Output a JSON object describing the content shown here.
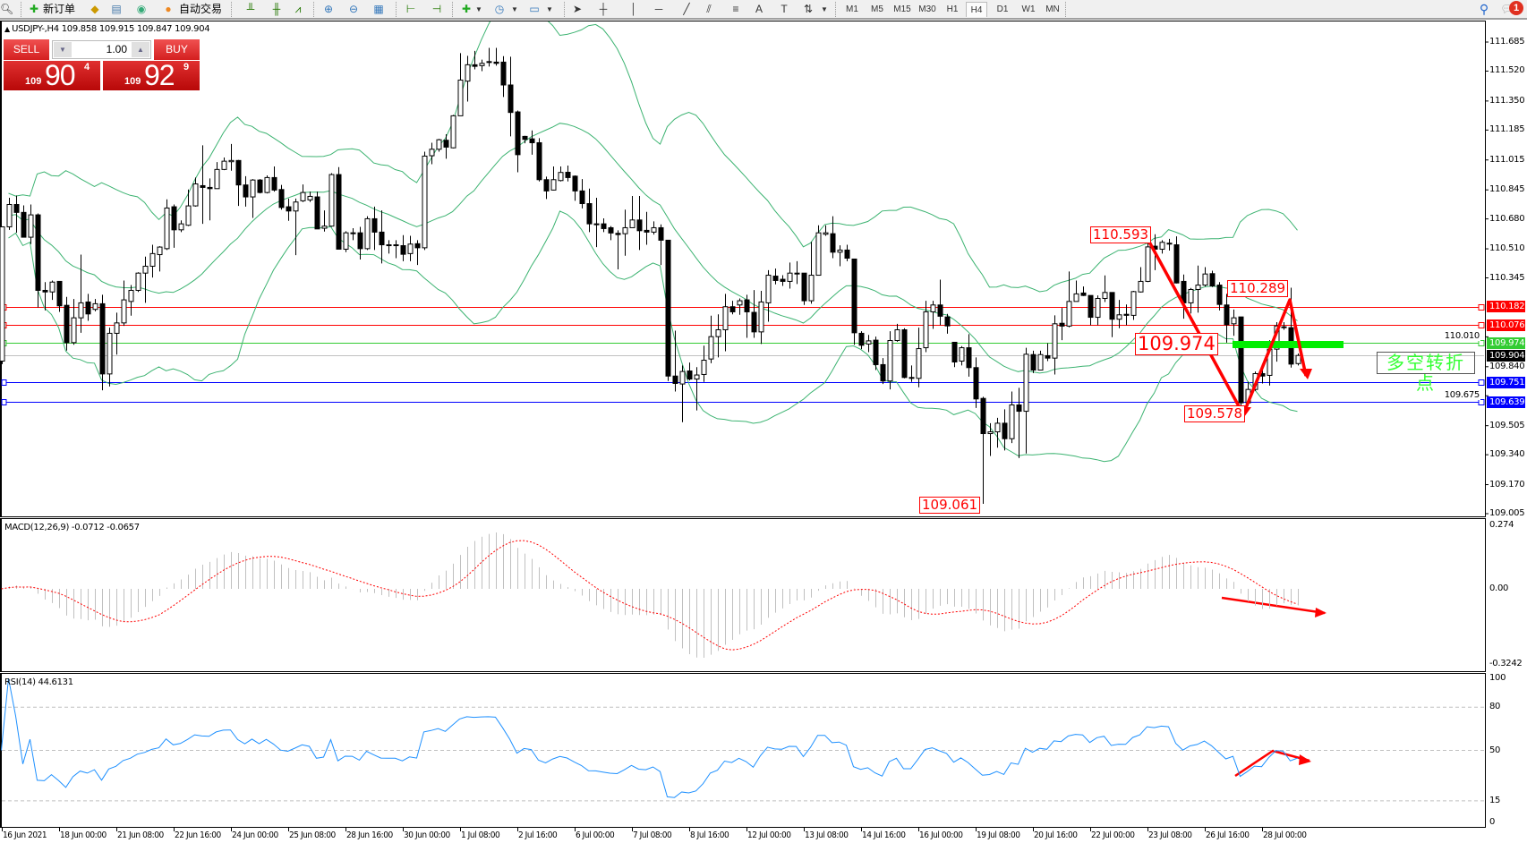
{
  "toolbar": {
    "new_order_label": "新订单",
    "auto_trading_label": "自动交易",
    "timeframes": [
      "M1",
      "M5",
      "M15",
      "M30",
      "H1",
      "H4",
      "D1",
      "W1",
      "MN"
    ],
    "active_timeframe": "H4",
    "notification_count": "1"
  },
  "chart_header": {
    "symbol_line": "USDJPY-,H4  109.858 109.915 109.847 109.904"
  },
  "trade_panel": {
    "sell_label": "SELL",
    "buy_label": "BUY",
    "lot": "1.00",
    "sell_price": {
      "small": "109",
      "big": "90",
      "pip": "4"
    },
    "buy_price": {
      "small": "109",
      "big": "92",
      "pip": "9"
    },
    "color": "#d42020"
  },
  "price_axis": {
    "ticks": [
      "111.685",
      "111.520",
      "111.350",
      "111.185",
      "111.015",
      "110.845",
      "110.680",
      "110.510",
      "110.345",
      "110.010",
      "109.840",
      "109.675",
      "109.505",
      "109.340",
      "109.170",
      "109.005"
    ],
    "range": [
      109.005,
      111.685
    ]
  },
  "levels": [
    {
      "price": "110.182",
      "color": "#ff0000"
    },
    {
      "price": "110.076",
      "color": "#ff0000"
    },
    {
      "price": "109.974",
      "color": "#33cc33"
    },
    {
      "price": "109.904",
      "color": "#000000",
      "line": "#c0c0c0"
    },
    {
      "price": "109.751",
      "color": "#0000ff"
    },
    {
      "price": "109.639",
      "color": "#0000ff"
    }
  ],
  "annotations": [
    "110.593",
    "110.289",
    "109.974",
    "109.578",
    "109.061"
  ],
  "turn_label": "多空转折点",
  "time_axis": [
    "16 Jun 2021",
    "18 Jun 00:00",
    "21 Jun 08:00",
    "22 Jun 16:00",
    "24 Jun 00:00",
    "25 Jun 08:00",
    "28 Jun 16:00",
    "30 Jun 00:00",
    "1 Jul 08:00",
    "2 Jul 16:00",
    "6 Jul 00:00",
    "7 Jul 08:00",
    "8 Jul 16:00",
    "12 Jul 00:00",
    "13 Jul 08:00",
    "14 Jul 16:00",
    "16 Jul 00:00",
    "19 Jul 08:00",
    "20 Jul 16:00",
    "22 Jul 00:00",
    "23 Jul 08:00",
    "26 Jul 16:00",
    "28 Jul 00:00"
  ],
  "macd": {
    "label": "MACD(12,26,9) -0.0712 -0.0657",
    "ticks": [
      "0.274",
      "0.00",
      "-0.3242"
    ],
    "range": [
      -0.3242,
      0.274
    ],
    "bar_color": "#c0c0c0",
    "signal_color": "#ff0000"
  },
  "rsi": {
    "label": "RSI(14) 44.6131",
    "ticks": [
      "100",
      "80",
      "50",
      "15",
      "0"
    ],
    "levels": [
      80,
      50,
      15
    ],
    "line_color": "#1e90ff"
  },
  "chart_data": {
    "type": "candlestick",
    "symbol": "USDJPY-",
    "timeframe": "H4",
    "bollinger_color": "#3cb371",
    "ohlc": [
      [
        109.872,
        110.635,
        109.855,
        110.635
      ],
      [
        110.635,
        110.8,
        110.618,
        110.762
      ],
      [
        110.762,
        110.813,
        110.601,
        110.717
      ],
      [
        110.717,
        110.757,
        110.576,
        110.576
      ],
      [
        110.576,
        110.762,
        110.537,
        110.703
      ],
      [
        110.703,
        110.711,
        110.177,
        110.274
      ],
      [
        110.274,
        110.321,
        110.16,
        110.265
      ],
      [
        110.265,
        110.33,
        110.22,
        110.321
      ],
      [
        110.325,
        110.325,
        110.152,
        110.186
      ],
      [
        110.189,
        110.237,
        109.932,
        109.977
      ],
      [
        109.977,
        110.225,
        109.965,
        110.118
      ],
      [
        110.118,
        110.477,
        110.033,
        110.203
      ],
      [
        110.208,
        110.254,
        110.101,
        110.14
      ],
      [
        110.166,
        110.225,
        110.155,
        110.198
      ],
      [
        110.198,
        110.249,
        109.706,
        109.799
      ],
      [
        109.799,
        110.062,
        109.728,
        110.03
      ],
      [
        110.03,
        110.147,
        109.909,
        110.089
      ],
      [
        110.089,
        110.33,
        110.072,
        110.22
      ],
      [
        110.211,
        110.304,
        110.13,
        110.274
      ],
      [
        110.274,
        110.377,
        110.265,
        110.372
      ],
      [
        110.372,
        110.466,
        110.203,
        110.411
      ],
      [
        110.411,
        110.533,
        110.347,
        110.483
      ],
      [
        110.477,
        110.525,
        110.381,
        110.52
      ],
      [
        110.511,
        110.791,
        110.503,
        110.742
      ],
      [
        110.749,
        110.762,
        110.516,
        110.618
      ],
      [
        110.618,
        110.672,
        110.605,
        110.652
      ],
      [
        110.644,
        110.847,
        110.639,
        110.754
      ],
      [
        110.754,
        110.915,
        110.75,
        110.879
      ],
      [
        110.869,
        111.098,
        110.652,
        110.859
      ],
      [
        110.859,
        110.91,
        110.672,
        110.852
      ],
      [
        110.852,
        111.003,
        110.852,
        110.961
      ],
      [
        110.961,
        111.029,
        110.957,
        111.008
      ],
      [
        111.005,
        111.106,
        110.954,
        111.012
      ],
      [
        111.012,
        111.015,
        110.754,
        110.873
      ],
      [
        110.873,
        110.923,
        110.75,
        110.805
      ],
      [
        110.805,
        110.906,
        110.686,
        110.901
      ],
      [
        110.901,
        110.906,
        110.825,
        110.83
      ],
      [
        110.83,
        110.927,
        110.825,
        110.915
      ],
      [
        110.915,
        110.978,
        110.835,
        110.844
      ],
      [
        110.847,
        110.873,
        110.733,
        110.745
      ],
      [
        110.749,
        110.796,
        110.669,
        110.725
      ],
      [
        110.725,
        110.796,
        110.474,
        110.776
      ],
      [
        110.783,
        110.876,
        110.776,
        110.83
      ],
      [
        110.788,
        110.835,
        110.776,
        110.808
      ],
      [
        110.805,
        110.835,
        110.623,
        110.623
      ],
      [
        110.627,
        110.728,
        110.608,
        110.639
      ],
      [
        110.639,
        110.94,
        110.635,
        110.932
      ],
      [
        110.932,
        110.974,
        110.508,
        110.508
      ],
      [
        110.508,
        110.61,
        110.491,
        110.601
      ],
      [
        110.601,
        110.627,
        110.559,
        110.598
      ],
      [
        110.601,
        110.635,
        110.449,
        110.511
      ],
      [
        110.511,
        110.695,
        110.503,
        110.681
      ],
      [
        110.681,
        110.75,
        110.503,
        110.605
      ],
      [
        110.605,
        110.728,
        110.427,
        110.533
      ],
      [
        110.533,
        110.559,
        110.483,
        110.53
      ],
      [
        110.533,
        110.559,
        110.457,
        110.528
      ],
      [
        110.528,
        110.588,
        110.44,
        110.479
      ],
      [
        110.483,
        110.584,
        110.44,
        110.537
      ],
      [
        110.539,
        110.559,
        110.418,
        110.516
      ],
      [
        110.516,
        111.062,
        110.503,
        111.037
      ],
      [
        111.039,
        111.113,
        110.991,
        111.076
      ],
      [
        111.076,
        111.135,
        111.062,
        111.13
      ],
      [
        111.127,
        111.161,
        111.022,
        111.088
      ],
      [
        111.084,
        111.271,
        111.081,
        111.266
      ],
      [
        111.266,
        111.622,
        111.266,
        111.469
      ],
      [
        111.463,
        111.607,
        111.347,
        111.556
      ],
      [
        111.556,
        111.635,
        111.53,
        111.547
      ],
      [
        111.551,
        111.585,
        111.52,
        111.564
      ],
      [
        111.574,
        111.652,
        111.546,
        111.569
      ],
      [
        111.571,
        111.652,
        111.551,
        111.564
      ],
      [
        111.571,
        111.605,
        111.373,
        111.441
      ],
      [
        111.441,
        111.602,
        111.149,
        111.285
      ],
      [
        111.288,
        111.296,
        110.945,
        111.045
      ],
      [
        111.149,
        111.152,
        111.11,
        111.132
      ],
      [
        111.135,
        111.183,
        111.045,
        111.113
      ],
      [
        111.113,
        111.139,
        110.893,
        110.903
      ],
      [
        110.903,
        110.92,
        110.793,
        110.839
      ],
      [
        110.844,
        110.978,
        110.842,
        110.903
      ],
      [
        110.898,
        110.978,
        110.893,
        110.944
      ],
      [
        110.945,
        110.983,
        110.893,
        110.915
      ],
      [
        110.923,
        110.927,
        110.783,
        110.839
      ],
      [
        110.839,
        110.906,
        110.74,
        110.767
      ],
      [
        110.767,
        110.852,
        110.605,
        110.652
      ],
      [
        110.652,
        110.8,
        110.52,
        110.65
      ],
      [
        110.652,
        110.683,
        110.605,
        110.625
      ],
      [
        110.63,
        110.639,
        110.559,
        110.6
      ],
      [
        110.598,
        110.615,
        110.393,
        110.591
      ],
      [
        110.596,
        110.733,
        110.471,
        110.63
      ],
      [
        110.63,
        110.81,
        110.63,
        110.674
      ],
      [
        110.674,
        110.81,
        110.503,
        110.613
      ],
      [
        110.615,
        110.72,
        110.533,
        110.605
      ],
      [
        110.605,
        110.666,
        110.591,
        110.63
      ],
      [
        110.63,
        110.649,
        110.418,
        110.559
      ],
      [
        110.559,
        110.559,
        109.759,
        109.787
      ],
      [
        109.787,
        110.045,
        109.699,
        109.745
      ],
      [
        109.742,
        109.847,
        109.525,
        109.813
      ],
      [
        109.816,
        109.864,
        109.762,
        109.77
      ],
      [
        109.77,
        109.838,
        109.592,
        109.793
      ],
      [
        109.796,
        109.96,
        109.754,
        109.877
      ],
      [
        109.884,
        110.13,
        109.86,
        110.011
      ],
      [
        110.011,
        110.138,
        109.893,
        110.05
      ],
      [
        110.05,
        110.254,
        109.928,
        110.181
      ],
      [
        110.181,
        110.215,
        110.138,
        110.152
      ],
      [
        110.191,
        110.228,
        110.135,
        110.215
      ],
      [
        110.22,
        110.249,
        110.004,
        110.152
      ],
      [
        110.149,
        110.276,
        110.004,
        110.038
      ],
      [
        110.038,
        110.271,
        109.969,
        110.208
      ],
      [
        110.203,
        110.389,
        110.096,
        110.36
      ],
      [
        110.355,
        110.398,
        110.308,
        110.33
      ],
      [
        110.337,
        110.36,
        110.299,
        110.325
      ],
      [
        110.325,
        110.432,
        110.284,
        110.372
      ],
      [
        110.372,
        110.44,
        110.31,
        110.371
      ],
      [
        110.372,
        110.372,
        110.191,
        110.215
      ],
      [
        110.215,
        110.55,
        110.198,
        110.36
      ],
      [
        110.36,
        110.644,
        110.36,
        110.601
      ],
      [
        110.593,
        110.644,
        110.584,
        110.601
      ],
      [
        110.596,
        110.695,
        110.457,
        110.491
      ],
      [
        110.491,
        110.53,
        110.411,
        110.503
      ],
      [
        110.503,
        110.533,
        110.44,
        110.457
      ],
      [
        110.452,
        110.452,
        109.965,
        110.033
      ],
      [
        110.03,
        110.042,
        109.94,
        109.962
      ],
      [
        109.969,
        110.021,
        109.923,
        109.987
      ],
      [
        109.991,
        110.011,
        109.821,
        109.852
      ],
      [
        109.852,
        109.889,
        109.742,
        109.759
      ],
      [
        109.759,
        110.042,
        109.711,
        109.989
      ],
      [
        109.989,
        110.084,
        109.982,
        110.05
      ],
      [
        110.05,
        110.059,
        109.774,
        109.779
      ],
      [
        109.779,
        109.847,
        109.754,
        109.777
      ],
      [
        109.774,
        110.062,
        109.723,
        109.943
      ],
      [
        109.948,
        110.215,
        109.923,
        110.152
      ],
      [
        110.152,
        110.215,
        110.055,
        110.191
      ],
      [
        110.191,
        110.335,
        110.076,
        110.127
      ],
      [
        110.123,
        110.14,
        110.028,
        110.072
      ],
      [
        109.979,
        109.979,
        109.838,
        109.867
      ],
      [
        109.872,
        109.957,
        109.847,
        109.948
      ],
      [
        109.948,
        110.025,
        109.784,
        109.835
      ],
      [
        109.835,
        109.893,
        109.606,
        109.657
      ],
      [
        109.66,
        109.669,
        109.061,
        109.46
      ],
      [
        109.46,
        109.519,
        109.333,
        109.47
      ],
      [
        109.47,
        109.55,
        109.38,
        109.519
      ],
      [
        109.519,
        109.598,
        109.364,
        109.431
      ],
      [
        109.431,
        109.699,
        109.406,
        109.623
      ],
      [
        109.623,
        109.72,
        109.321,
        109.587
      ],
      [
        109.587,
        109.948,
        109.347,
        109.911
      ],
      [
        109.909,
        109.931,
        109.804,
        109.821
      ],
      [
        109.821,
        109.931,
        109.821,
        109.909
      ],
      [
        109.903,
        109.974,
        109.872,
        109.889
      ],
      [
        109.889,
        110.132,
        109.796,
        110.084
      ],
      [
        110.087,
        110.174,
        109.991,
        110.071
      ],
      [
        110.071,
        110.381,
        110.064,
        110.211
      ],
      [
        110.211,
        110.33,
        110.211,
        110.254
      ],
      [
        110.259,
        110.296,
        110.242,
        110.245
      ],
      [
        110.245,
        110.245,
        110.076,
        110.121
      ],
      [
        110.121,
        110.245,
        110.076,
        110.228
      ],
      [
        110.228,
        110.359,
        110.208,
        110.262
      ],
      [
        110.262,
        110.262,
        110.008,
        110.11
      ],
      [
        110.11,
        110.22,
        110.059,
        110.135
      ],
      [
        110.138,
        110.194,
        110.076,
        110.132
      ],
      [
        110.132,
        110.271,
        110.106,
        110.267
      ],
      [
        110.265,
        110.406,
        110.262,
        110.325
      ],
      [
        110.325,
        110.584,
        110.321,
        110.521
      ],
      [
        110.525,
        110.593,
        110.389,
        110.508
      ],
      [
        110.508,
        110.559,
        110.483,
        110.547
      ],
      [
        110.542,
        110.567,
        110.5,
        110.54
      ],
      [
        110.533,
        110.581,
        110.313,
        110.316
      ],
      [
        110.325,
        110.364,
        110.113,
        110.203
      ],
      [
        110.203,
        110.288,
        110.143,
        110.279
      ],
      [
        110.279,
        110.415,
        110.147,
        110.304
      ],
      [
        110.304,
        110.406,
        110.296,
        110.367
      ],
      [
        110.369,
        110.386,
        110.293,
        110.299
      ],
      [
        110.304,
        110.321,
        110.16,
        110.194
      ],
      [
        110.191,
        110.254,
        109.977,
        110.079
      ],
      [
        110.084,
        110.165,
        110.016,
        110.118
      ],
      [
        110.123,
        110.123,
        109.578,
        109.635
      ],
      [
        109.635,
        109.754,
        109.618,
        109.711
      ],
      [
        109.711,
        109.813,
        109.703,
        109.801
      ],
      [
        109.801,
        109.83,
        109.745,
        109.787
      ],
      [
        109.791,
        109.991,
        109.733,
        109.94
      ],
      [
        109.94,
        110.093,
        109.869,
        110.072
      ],
      [
        110.067,
        110.093,
        110.05,
        110.062
      ],
      [
        110.062,
        110.289,
        109.835,
        109.855
      ],
      [
        109.858,
        109.915,
        109.847,
        109.904
      ]
    ]
  }
}
